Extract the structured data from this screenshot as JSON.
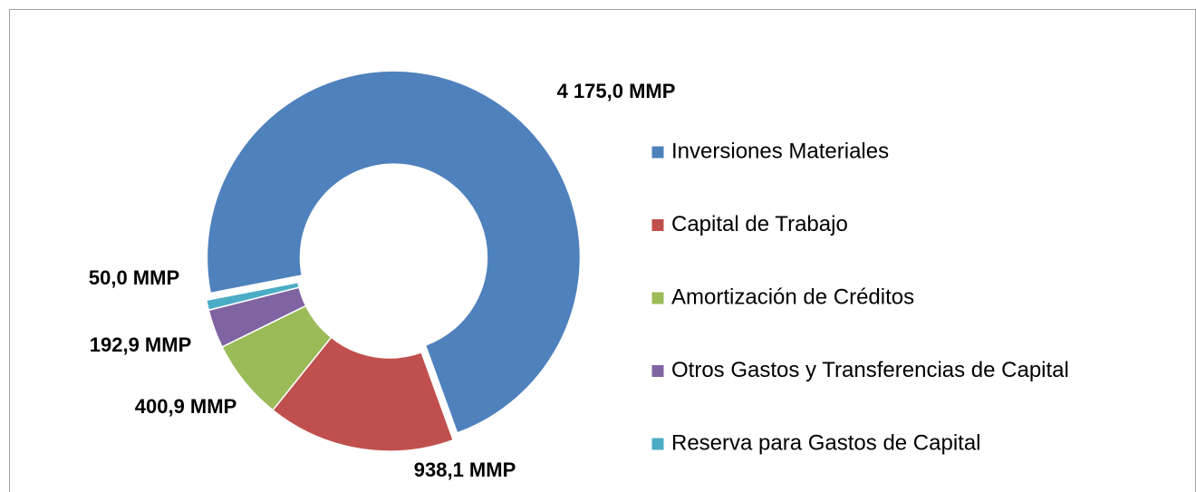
{
  "chart_data": {
    "type": "donut",
    "categories": [
      "Inversiones Materiales",
      "Capital de Trabajo",
      "Amortización de Créditos",
      "Otros Gastos y Transferencias de Capital",
      "Reserva para Gastos de Capital"
    ],
    "values": [
      4175.0,
      938.1,
      400.9,
      192.9,
      50.0
    ],
    "value_labels": [
      "4 175,0 MMP",
      "938,1 MMP",
      "400,9 MMP",
      "192,9 MMP",
      "50,0 MMP"
    ],
    "colors": [
      "#4f81bd",
      "#c0504d",
      "#9bbb59",
      "#8064a2",
      "#4bacc6"
    ],
    "legend": "right"
  }
}
